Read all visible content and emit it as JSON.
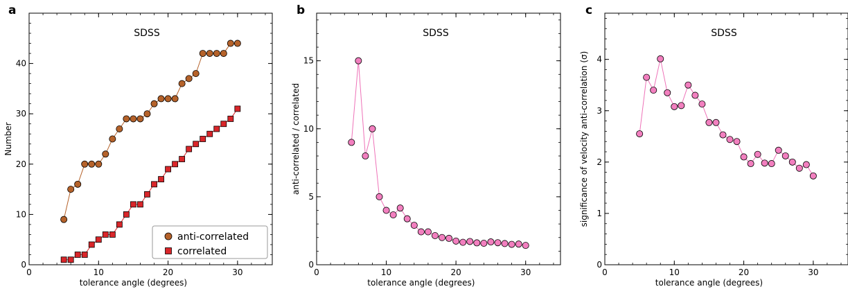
{
  "colors": {
    "anti_correlated": "#b5622a",
    "correlated": "#d9262a",
    "ratio": "#f27fbf",
    "ratio_line": "#ee72b8"
  },
  "chart_data": [
    {
      "type": "line",
      "panel": "a",
      "title": "SDSS",
      "xlabel": "tolerance angle (degrees)",
      "ylabel": "Number",
      "xlim": [
        0,
        35
      ],
      "ylim": [
        0,
        50
      ],
      "xticks": [
        0,
        10,
        20,
        30
      ],
      "yticks": [
        0,
        10,
        20,
        30,
        40
      ],
      "legend_position": "lower-right",
      "x": [
        5,
        6,
        7,
        8,
        9,
        10,
        11,
        12,
        13,
        14,
        15,
        16,
        17,
        18,
        19,
        20,
        21,
        22,
        23,
        24,
        25,
        26,
        27,
        28,
        29,
        30
      ],
      "series": [
        {
          "name": "anti-correlated",
          "marker": "circle",
          "values": [
            9,
            15,
            16,
            20,
            20,
            20,
            22,
            25,
            27,
            29,
            29,
            29,
            30,
            32,
            33,
            33,
            33,
            36,
            37,
            38,
            42,
            42,
            42,
            42,
            44,
            44
          ]
        },
        {
          "name": "correlated",
          "marker": "square",
          "values": [
            1,
            1,
            2,
            2,
            4,
            5,
            6,
            6,
            8,
            10,
            12,
            12,
            14,
            16,
            17,
            19,
            20,
            21,
            23,
            24,
            25,
            26,
            27,
            28,
            29,
            31
          ]
        }
      ]
    },
    {
      "type": "line",
      "panel": "b",
      "title": "SDSS",
      "xlabel": "tolerance angle (degrees)",
      "ylabel": "anti-correlated / correlated",
      "xlim": [
        0,
        35
      ],
      "ylim": [
        0,
        18.5
      ],
      "xticks": [
        0,
        10,
        20,
        30
      ],
      "yticks": [
        0,
        5,
        10,
        15
      ],
      "x": [
        5,
        6,
        7,
        8,
        9,
        10,
        11,
        12,
        13,
        14,
        15,
        16,
        17,
        18,
        19,
        20,
        21,
        22,
        23,
        24,
        25,
        26,
        27,
        28,
        29,
        30
      ],
      "series": [
        {
          "marker": "circle",
          "values": [
            9,
            15,
            8,
            10,
            5,
            4,
            3.67,
            4.17,
            3.38,
            2.9,
            2.42,
            2.42,
            2.14,
            2.0,
            1.94,
            1.74,
            1.65,
            1.71,
            1.61,
            1.58,
            1.68,
            1.62,
            1.56,
            1.5,
            1.52,
            1.42
          ]
        }
      ]
    },
    {
      "type": "line",
      "panel": "c",
      "title": "SDSS",
      "xlabel": "tolerance angle (degrees)",
      "ylabel": "significance of velocity anti-correlation (σ)",
      "xlim": [
        0,
        35
      ],
      "ylim": [
        0,
        4.9
      ],
      "xticks": [
        0,
        10,
        20,
        30
      ],
      "yticks": [
        0,
        1,
        2,
        3,
        4
      ],
      "x": [
        5,
        6,
        7,
        8,
        9,
        10,
        11,
        12,
        13,
        14,
        15,
        16,
        17,
        18,
        19,
        20,
        21,
        22,
        23,
        24,
        25,
        26,
        27,
        28,
        29,
        30
      ],
      "series": [
        {
          "marker": "circle",
          "values": [
            2.55,
            3.65,
            3.4,
            4.01,
            3.35,
            3.08,
            3.1,
            3.5,
            3.3,
            3.13,
            2.77,
            2.77,
            2.53,
            2.44,
            2.4,
            2.1,
            1.97,
            2.15,
            1.98,
            1.97,
            2.23,
            2.12,
            2.0,
            1.88,
            1.95,
            1.73
          ]
        }
      ]
    }
  ]
}
